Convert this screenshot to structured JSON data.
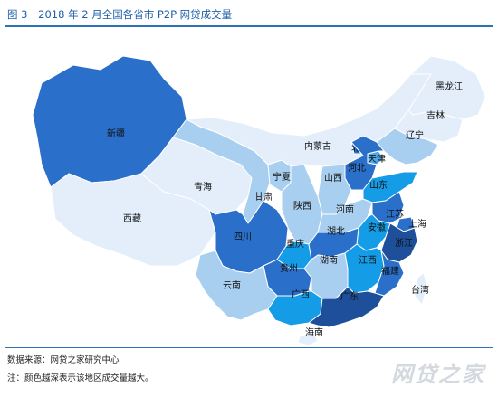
{
  "header": {
    "figure_label": "图 3",
    "title": "2018 年 2 月全国各省市 P2P 网贷成交量"
  },
  "colors": {
    "very_light": "#e3eefa",
    "light": "#a9cff0",
    "medium": "#4ea7e6",
    "bright": "#159ce6",
    "deep": "#2a6fc9",
    "darkest": "#1d4f9a",
    "stroke": "#ffffff"
  },
  "map": {
    "provinces": [
      {
        "name": "新疆",
        "shade": "deep"
      },
      {
        "name": "西藏",
        "shade": "very_light"
      },
      {
        "name": "青海",
        "shade": "very_light"
      },
      {
        "name": "甘肃",
        "shade": "light"
      },
      {
        "name": "宁夏",
        "shade": "light"
      },
      {
        "name": "内蒙古",
        "shade": "very_light"
      },
      {
        "name": "黑龙江",
        "shade": "very_light"
      },
      {
        "name": "吉林",
        "shade": "very_light"
      },
      {
        "name": "辽宁",
        "shade": "light"
      },
      {
        "name": "北京",
        "shade": "deep"
      },
      {
        "name": "天津",
        "shade": "medium"
      },
      {
        "name": "河北",
        "shade": "deep"
      },
      {
        "name": "山西",
        "shade": "light"
      },
      {
        "name": "山东",
        "shade": "bright"
      },
      {
        "name": "陕西",
        "shade": "light"
      },
      {
        "name": "河南",
        "shade": "light"
      },
      {
        "name": "江苏",
        "shade": "deep"
      },
      {
        "name": "安徽",
        "shade": "bright"
      },
      {
        "name": "上海",
        "shade": "deep"
      },
      {
        "name": "四川",
        "shade": "deep"
      },
      {
        "name": "重庆",
        "shade": "bright"
      },
      {
        "name": "湖北",
        "shade": "deep"
      },
      {
        "name": "浙江",
        "shade": "darkest"
      },
      {
        "name": "贵州",
        "shade": "deep"
      },
      {
        "name": "湖南",
        "shade": "light"
      },
      {
        "name": "江西",
        "shade": "bright"
      },
      {
        "name": "福建",
        "shade": "deep"
      },
      {
        "name": "云南",
        "shade": "light"
      },
      {
        "name": "广西",
        "shade": "bright"
      },
      {
        "name": "广东",
        "shade": "darkest"
      },
      {
        "name": "台湾",
        "shade": "very_light"
      },
      {
        "name": "海南",
        "shade": "very_light"
      }
    ]
  },
  "footer": {
    "source": "数据来源：网贷之家研究中心",
    "note": "注：颜色越深表示该地区成交量越大。",
    "watermark": "网贷之家"
  }
}
